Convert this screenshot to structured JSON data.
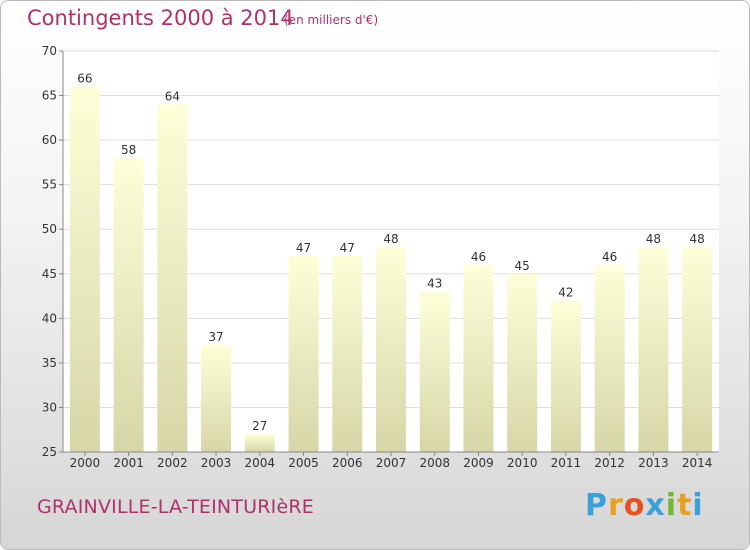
{
  "header": {
    "title": "Contingents 2000 à 2014",
    "subtitle": "(en milliers d'€)"
  },
  "footer": {
    "commune": "GRAINVILLE-LA-TEINTURIèRE",
    "brand_letters": [
      "P",
      "r",
      "o",
      "x",
      "i",
      "t",
      "i"
    ],
    "brand_colors": [
      "#3aa0d8",
      "#e8a020",
      "#e85020",
      "#3aa0d8",
      "#70b830",
      "#e8a020",
      "#3aa0d8"
    ]
  },
  "chart_data": {
    "type": "bar",
    "title": "Contingents 2000 à 2014",
    "subtitle": "(en milliers d'€)",
    "categories": [
      "2000",
      "2001",
      "2002",
      "2003",
      "2004",
      "2005",
      "2006",
      "2007",
      "2008",
      "2009",
      "2010",
      "2011",
      "2012",
      "2013",
      "2014"
    ],
    "values": [
      66,
      58,
      64,
      37,
      27,
      47,
      47,
      48,
      43,
      46,
      45,
      42,
      46,
      48,
      48
    ],
    "ylim": [
      25,
      70
    ],
    "yticks": [
      25,
      30,
      35,
      40,
      45,
      50,
      55,
      60,
      65,
      70
    ],
    "grid": true,
    "bar_color_top": "#fdffd8",
    "bar_color_bottom": "#d6d6a8"
  }
}
